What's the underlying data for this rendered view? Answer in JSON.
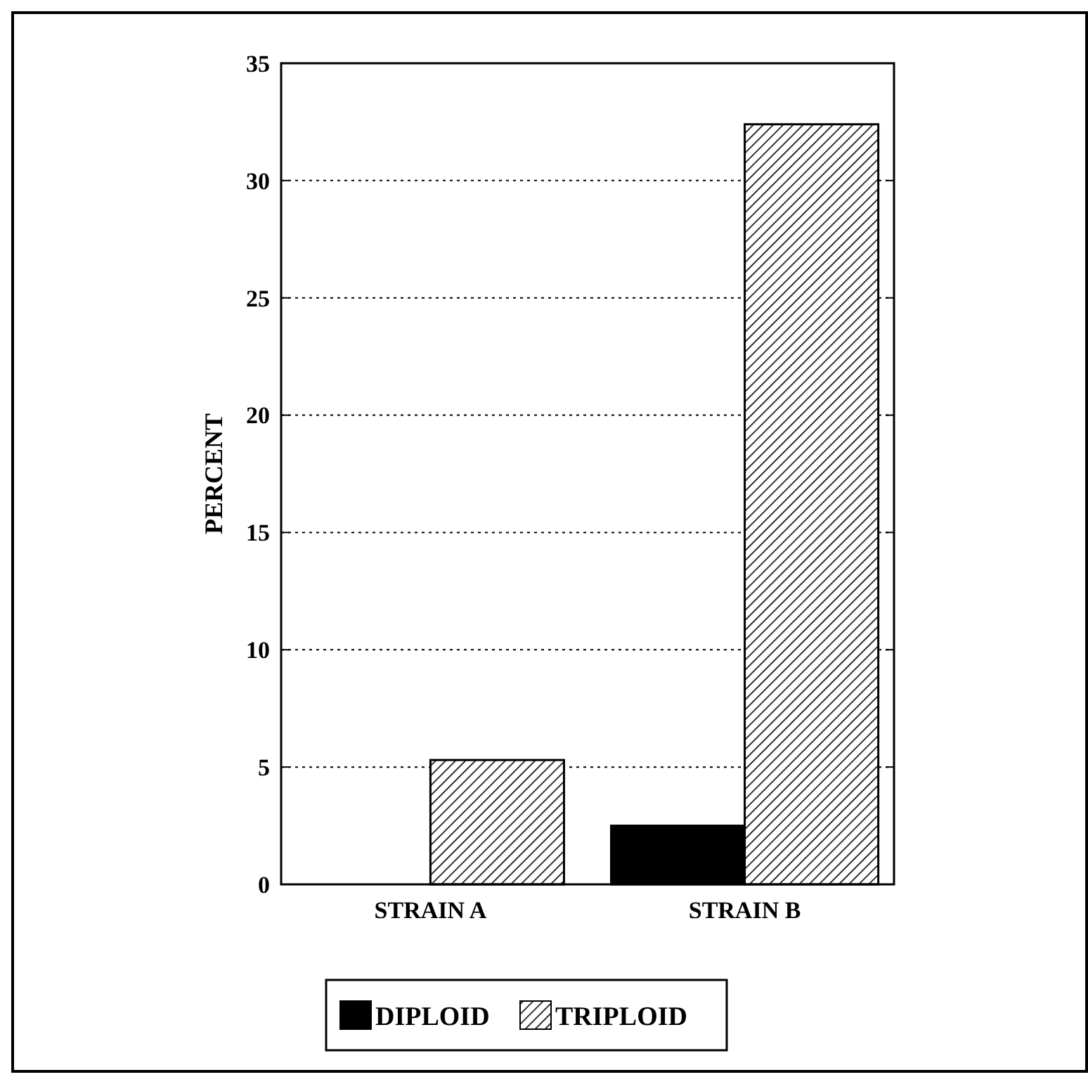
{
  "chart_data": {
    "type": "bar",
    "ylabel": "PERCENT",
    "categories": [
      "STRAIN A",
      "STRAIN B"
    ],
    "series": [
      {
        "name": "DIPLOID",
        "color": "#000000",
        "values": [
          0,
          2.5
        ]
      },
      {
        "name": "TRIPLOID",
        "color": "#000000",
        "values": [
          5.3,
          32.4
        ]
      }
    ],
    "ylim": [
      0,
      35
    ],
    "yticks": [
      0,
      5,
      10,
      15,
      20,
      25,
      30,
      35
    ],
    "grid": "y",
    "legend": "bottom"
  }
}
